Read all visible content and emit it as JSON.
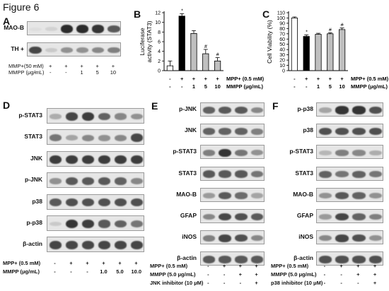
{
  "figure_title": "Figure 6",
  "panels": {
    "A": {
      "label": "A",
      "rows": [
        {
          "name": "MAO-B",
          "lanes": [
            0.0,
            0.1,
            1.0,
            1.0,
            0.95,
            0.75
          ]
        },
        {
          "name": "TH +",
          "lanes": [
            0.85,
            0.15,
            0.45,
            0.45,
            0.5,
            0.55
          ]
        }
      ],
      "treatments": [
        {
          "label": "MMP+(50 mM)",
          "marks": [
            "-",
            "+",
            "+",
            "+",
            "+",
            "+"
          ]
        },
        {
          "label": "MMPP (μg/mL)",
          "marks": [
            "-",
            "-",
            "-",
            "1",
            "5",
            "10"
          ]
        }
      ]
    },
    "B": {
      "label": "B",
      "treatments": [
        {
          "label": "MPP+ (0.5 mM)",
          "marks": [
            "-",
            "+",
            "+",
            "+",
            "+"
          ]
        },
        {
          "label": "MMPP (μg/mL)",
          "marks": [
            "-",
            "-",
            "1",
            "5",
            "10"
          ]
        }
      ]
    },
    "C": {
      "label": "C",
      "treatments": [
        {
          "label": "MPP+ (0.5 mM)",
          "marks": [
            "-",
            "+",
            "+",
            "+",
            "+"
          ]
        },
        {
          "label": "MMPP (μg/mL)",
          "marks": [
            "-",
            "-",
            "1",
            "5",
            "10"
          ]
        }
      ]
    },
    "D": {
      "label": "D",
      "rows": [
        {
          "name": "p-STAT3",
          "lanes": [
            0.3,
            0.85,
            0.9,
            0.7,
            0.5,
            0.45
          ]
        },
        {
          "name": "STAT3",
          "lanes": [
            0.6,
            0.35,
            0.5,
            0.45,
            0.5,
            0.85
          ]
        },
        {
          "name": "JNK",
          "lanes": [
            0.9,
            0.9,
            0.9,
            0.9,
            0.9,
            0.9
          ]
        },
        {
          "name": "p-JNK",
          "lanes": [
            0.45,
            0.75,
            0.75,
            0.75,
            0.7,
            0.5
          ]
        },
        {
          "name": "p38",
          "lanes": [
            0.75,
            0.8,
            0.8,
            0.8,
            0.8,
            0.8
          ]
        },
        {
          "name": "p-p38",
          "lanes": [
            0.15,
            0.95,
            0.9,
            0.75,
            0.7,
            0.6
          ]
        },
        {
          "name": "β-actin",
          "lanes": [
            0.85,
            0.85,
            0.85,
            0.85,
            0.85,
            0.85
          ]
        }
      ],
      "treatments": [
        {
          "label": "MPP+ (0.5 mM)",
          "marks": [
            "-",
            "+",
            "+",
            "+",
            "+",
            "+"
          ]
        },
        {
          "label": "MMPP (μg/mL)",
          "marks": [
            "-",
            "-",
            "-",
            "1.0",
            "5.0",
            "10.0"
          ]
        }
      ]
    },
    "E": {
      "label": "E",
      "rows": [
        {
          "name": "p-JNK",
          "lanes": [
            0.7,
            0.75,
            0.75,
            0.5
          ]
        },
        {
          "name": "JNK",
          "lanes": [
            0.7,
            0.7,
            0.7,
            0.55
          ]
        },
        {
          "name": "p-STAT3",
          "lanes": [
            0.55,
            0.95,
            0.6,
            0.45
          ]
        },
        {
          "name": "STAT3",
          "lanes": [
            0.75,
            0.75,
            0.75,
            0.6
          ]
        },
        {
          "name": "MAO-B",
          "lanes": [
            0.4,
            0.75,
            0.65,
            0.35
          ]
        },
        {
          "name": "GFAP",
          "lanes": [
            0.5,
            0.85,
            0.8,
            0.75
          ]
        },
        {
          "name": "iNOS",
          "lanes": [
            0.55,
            0.85,
            0.8,
            0.5
          ]
        },
        {
          "name": "β-actin",
          "lanes": [
            0.75,
            0.75,
            0.75,
            0.75
          ]
        }
      ],
      "treatments": [
        {
          "label": "MPP+ (0.5 mM)",
          "marks": [
            "-",
            "+",
            "+",
            "+"
          ]
        },
        {
          "label": "MMPP (5.0 μg/mL)",
          "marks": [
            "-",
            "-",
            "+",
            "+"
          ]
        },
        {
          "label": "JNK inhibitor (10 μM)",
          "marks": [
            "-",
            "-",
            "-",
            "+"
          ]
        }
      ]
    },
    "F": {
      "label": "F",
      "rows": [
        {
          "name": "p-p38",
          "lanes": [
            0.35,
            0.95,
            0.95,
            0.8
          ]
        },
        {
          "name": "p38",
          "lanes": [
            0.8,
            0.8,
            0.8,
            0.8
          ]
        },
        {
          "name": "p-STAT3",
          "lanes": [
            0.25,
            0.55,
            0.5,
            0.3
          ]
        },
        {
          "name": "STAT3",
          "lanes": [
            0.7,
            0.6,
            0.7,
            0.6
          ]
        },
        {
          "name": "MAO-B",
          "lanes": [
            0.45,
            0.75,
            0.7,
            0.45
          ]
        },
        {
          "name": "GFAP",
          "lanes": [
            0.4,
            0.85,
            0.7,
            0.55
          ]
        },
        {
          "name": "iNOS",
          "lanes": [
            0.5,
            0.85,
            0.8,
            0.45
          ]
        },
        {
          "name": "β-actin",
          "lanes": [
            0.8,
            0.8,
            0.8,
            0.8
          ]
        }
      ],
      "treatments": [
        {
          "label": "MPP+ (0.5 mM)",
          "marks": [
            "-",
            "+",
            "+",
            "+"
          ]
        },
        {
          "label": "MMPP (5.0 μg/mL)",
          "marks": [
            "-",
            "-",
            "+",
            "+"
          ]
        },
        {
          "label": "p38 inhibitor (10 μM)",
          "marks": [
            "-",
            "-",
            "-",
            "+"
          ]
        }
      ]
    }
  },
  "colors": {
    "control": "#ffffff",
    "mpp": "#000000",
    "mmpp": "#bfbfbf"
  },
  "chart_data": [
    {
      "type": "bar",
      "panel": "B",
      "categories": [
        "1",
        "2",
        "3",
        "4",
        "5"
      ],
      "values": [
        1.0,
        11.3,
        7.7,
        3.5,
        2.0
      ],
      "errors": [
        1.0,
        0.5,
        0.6,
        0.9,
        0.7
      ],
      "annotations": [
        "",
        "*",
        "",
        "#",
        "#"
      ],
      "ylabel": "Luciferase activity (STAT3)",
      "yticks": [
        0,
        2,
        4,
        6,
        8,
        10,
        12
      ],
      "ylim": [
        0,
        12
      ]
    },
    {
      "type": "bar",
      "panel": "C",
      "categories": [
        "1",
        "2",
        "3",
        "4",
        "5"
      ],
      "values": [
        100,
        65,
        69,
        70,
        78
      ],
      "errors": [
        2,
        3,
        2,
        2,
        3
      ],
      "annotations": [
        "",
        "*",
        "",
        "#",
        "#"
      ],
      "ylabel": "Cell Viability (%)",
      "yticks": [
        0,
        10,
        20,
        30,
        40,
        50,
        60,
        70,
        80,
        90,
        100,
        110
      ],
      "ylim": [
        0,
        110
      ]
    }
  ]
}
